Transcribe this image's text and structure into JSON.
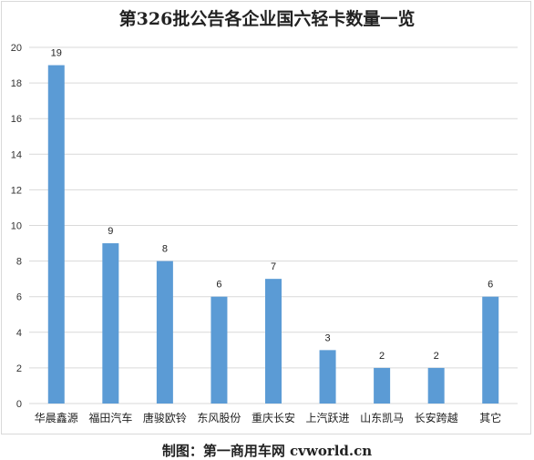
{
  "chart_data": {
    "type": "bar",
    "title": "第326批公告各企业国六轻卡数量一览",
    "categories": [
      "华晨鑫源",
      "福田汽车",
      "唐骏欧铃",
      "东风股份",
      "重庆长安",
      "上汽跃进",
      "山东凯马",
      "长安跨越",
      "其它"
    ],
    "values": [
      19,
      9,
      8,
      6,
      7,
      3,
      2,
      2,
      6
    ],
    "ylim": [
      0,
      20
    ],
    "yticks": [
      0,
      2,
      4,
      6,
      8,
      10,
      12,
      14,
      16,
      18,
      20
    ],
    "grid": true,
    "legend": "none",
    "bar_color": "#5b9bd5",
    "xlabel": "",
    "ylabel": ""
  },
  "footer": "制图：第一商用车网 cvworld.cn"
}
